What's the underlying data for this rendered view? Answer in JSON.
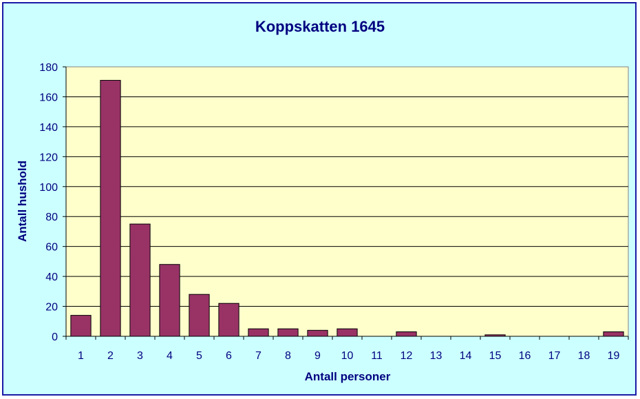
{
  "chart_data": {
    "type": "bar",
    "title": "Koppskatten 1645",
    "xlabel": "Antall personer",
    "ylabel": "Antall hushold",
    "categories": [
      "1",
      "2",
      "3",
      "4",
      "5",
      "6",
      "7",
      "8",
      "9",
      "10",
      "11",
      "12",
      "13",
      "14",
      "15",
      "16",
      "17",
      "18",
      "19"
    ],
    "values": [
      14,
      171,
      75,
      48,
      28,
      22,
      5,
      5,
      4,
      5,
      0,
      3,
      0,
      0,
      1,
      0,
      0,
      0,
      3
    ],
    "ylim": [
      0,
      180
    ],
    "yticks": [
      "0",
      "20",
      "40",
      "60",
      "80",
      "100",
      "120",
      "140",
      "160",
      "180"
    ],
    "grid": true,
    "legend": "none",
    "colors": {
      "bar": "#993366",
      "plot_background": "#ffffcc",
      "chart_background": "#ccffff",
      "text": "#000080",
      "border": "#1a1aa6"
    }
  }
}
